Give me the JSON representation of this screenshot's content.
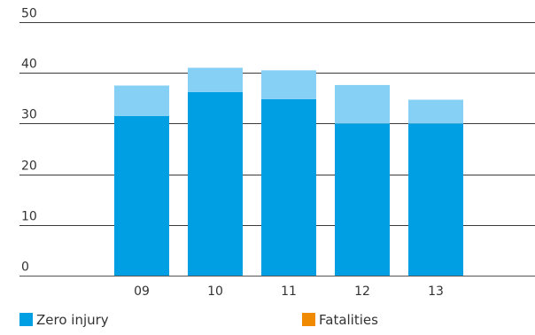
{
  "chart_data": {
    "type": "bar",
    "stacked": true,
    "categories": [
      "09",
      "10",
      "11",
      "12",
      "13"
    ],
    "series": [
      {
        "name": "Zero injury",
        "values": [
          31.5,
          36.2,
          34.8,
          30.0,
          30.0
        ],
        "color": "#009fe3"
      },
      {
        "name": "",
        "values": [
          6.0,
          4.8,
          5.7,
          7.6,
          4.7
        ],
        "color": "#87d0f5"
      }
    ],
    "ylim": [
      0,
      50
    ],
    "yticks": [
      0,
      10,
      20,
      30,
      40,
      50
    ],
    "grid": true,
    "legend": [
      {
        "label": "Zero injury",
        "color": "#009fe3"
      },
      {
        "label": "Fatalities",
        "color": "#f08a00"
      }
    ],
    "legend_position": "bottom",
    "title": "",
    "xlabel": "",
    "ylabel": ""
  }
}
